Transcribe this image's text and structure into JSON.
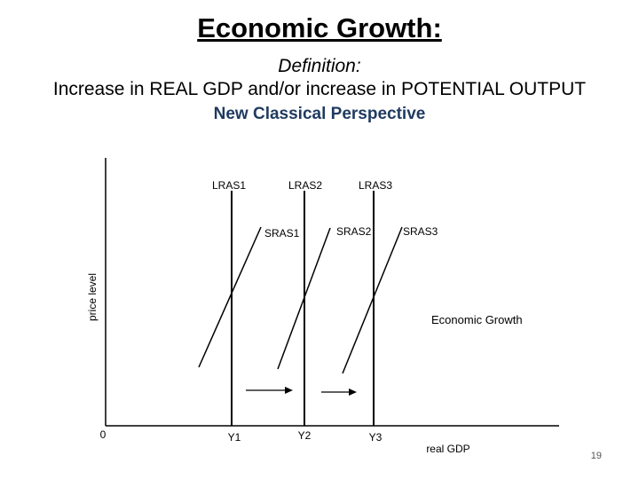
{
  "slide": {
    "title": "Economic Growth:",
    "subtitle": "Definition:",
    "definition": "Increase in REAL GDP and/or increase in POTENTIAL OUTPUT",
    "perspective": "New Classical Perspective",
    "page_number": "19"
  },
  "diagram": {
    "y_axis_label": "price level",
    "x_axis_label": "real GDP",
    "origin_label": "0",
    "annotation": "Economic Growth",
    "lras": [
      {
        "label": "LRAS1",
        "output_label": "Y1"
      },
      {
        "label": "LRAS2",
        "output_label": "Y2"
      },
      {
        "label": "LRAS3",
        "output_label": "Y3"
      }
    ],
    "sras": [
      {
        "label": "SRAS1"
      },
      {
        "label": "SRAS2"
      },
      {
        "label": "SRAS3"
      }
    ]
  }
}
